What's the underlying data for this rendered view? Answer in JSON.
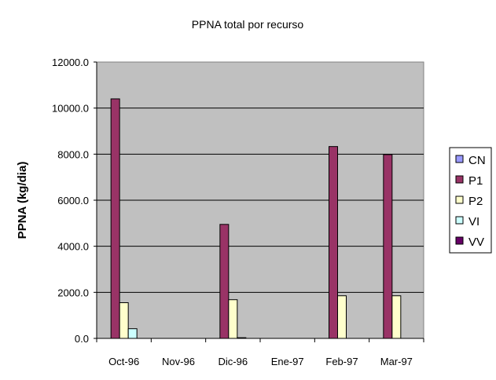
{
  "chart_data": {
    "type": "bar",
    "title": "PPNA total por recurso",
    "xlabel": "",
    "ylabel": "PPNA (kg/dia)",
    "ylim": [
      0,
      12000
    ],
    "yticks": [
      "0.0",
      "2000.0",
      "4000.0",
      "6000.0",
      "8000.0",
      "10000.0",
      "12000.0"
    ],
    "categories": [
      "Oct-96",
      "Nov-96",
      "Dic-96",
      "Ene-97",
      "Feb-97",
      "Mar-97"
    ],
    "grid": true,
    "legend_position": "right",
    "plot_background": "#c0c0c0",
    "series": [
      {
        "name": "CN",
        "color": "#9999ff",
        "values": [
          0,
          0,
          0,
          0,
          0,
          0
        ]
      },
      {
        "name": "P1",
        "color": "#993366",
        "values": [
          10400,
          0,
          4950,
          0,
          8330,
          7980
        ]
      },
      {
        "name": "P2",
        "color": "#ffffcc",
        "values": [
          1550,
          0,
          1680,
          0,
          1850,
          1850
        ]
      },
      {
        "name": "VI",
        "color": "#ccffff",
        "values": [
          420,
          0,
          30,
          0,
          0,
          0
        ]
      },
      {
        "name": "VV",
        "color": "#660066",
        "values": [
          0,
          0,
          0,
          0,
          0,
          0
        ]
      }
    ]
  }
}
